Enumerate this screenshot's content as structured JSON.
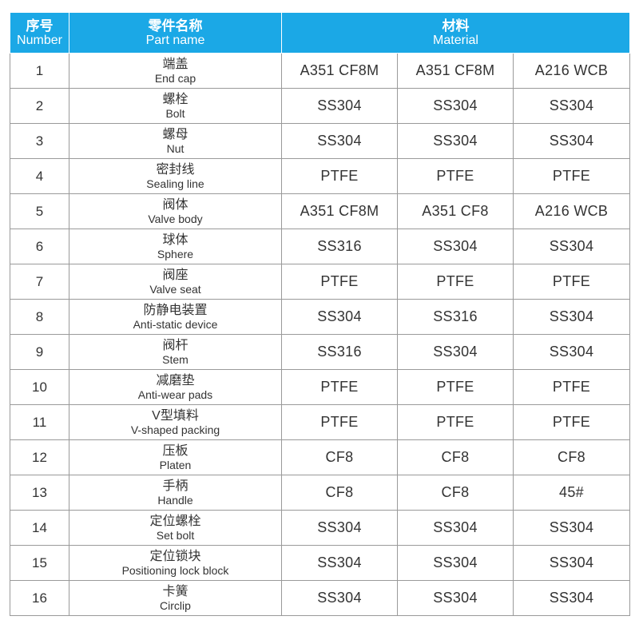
{
  "header": {
    "number_zh": "序号",
    "number_en": "Number",
    "part_name_zh": "零件名称",
    "part_name_en": "Part name",
    "material_zh": "材料",
    "material_en": "Material"
  },
  "rows": [
    {
      "no": "1",
      "zh": "端盖",
      "en": "End cap",
      "m1": "A351 CF8M",
      "m2": "A351 CF8M",
      "m3": "A216 WCB"
    },
    {
      "no": "2",
      "zh": "螺栓",
      "en": "Bolt",
      "m1": "SS304",
      "m2": "SS304",
      "m3": "SS304"
    },
    {
      "no": "3",
      "zh": "螺母",
      "en": "Nut",
      "m1": "SS304",
      "m2": "SS304",
      "m3": "SS304"
    },
    {
      "no": "4",
      "zh": "密封线",
      "en": "Sealing line",
      "m1": "PTFE",
      "m2": "PTFE",
      "m3": "PTFE"
    },
    {
      "no": "5",
      "zh": "阀体",
      "en": "Valve body",
      "m1": "A351 CF8M",
      "m2": "A351 CF8",
      "m3": "A216 WCB"
    },
    {
      "no": "6",
      "zh": "球体",
      "en": "Sphere",
      "m1": "SS316",
      "m2": "SS304",
      "m3": "SS304"
    },
    {
      "no": "7",
      "zh": "阀座",
      "en": "Valve seat",
      "m1": "PTFE",
      "m2": "PTFE",
      "m3": "PTFE"
    },
    {
      "no": "8",
      "zh": "防静电装置",
      "en": "Anti-static device",
      "m1": "SS304",
      "m2": "SS316",
      "m3": "SS304"
    },
    {
      "no": "9",
      "zh": "阀杆",
      "en": "Stem",
      "m1": "SS316",
      "m2": "SS304",
      "m3": "SS304"
    },
    {
      "no": "10",
      "zh": "减磨垫",
      "en": "Anti-wear pads",
      "m1": "PTFE",
      "m2": "PTFE",
      "m3": "PTFE"
    },
    {
      "no": "11",
      "zh": "V型填料",
      "en": "V-shaped packing",
      "m1": "PTFE",
      "m2": "PTFE",
      "m3": "PTFE"
    },
    {
      "no": "12",
      "zh": "压板",
      "en": "Platen",
      "m1": "CF8",
      "m2": "CF8",
      "m3": "CF8"
    },
    {
      "no": "13",
      "zh": "手柄",
      "en": "Handle",
      "m1": "CF8",
      "m2": "CF8",
      "m3": "45#"
    },
    {
      "no": "14",
      "zh": "定位螺栓",
      "en": "Set bolt",
      "m1": "SS304",
      "m2": "SS304",
      "m3": "SS304"
    },
    {
      "no": "15",
      "zh": "定位锁块",
      "en": "Positioning lock block",
      "m1": "SS304",
      "m2": "SS304",
      "m3": "SS304"
    },
    {
      "no": "16",
      "zh": "卡簧",
      "en": "Circlip",
      "m1": "SS304",
      "m2": "SS304",
      "m3": "SS304"
    }
  ],
  "colors": {
    "header_bg": "#1ba8e6",
    "header_text": "#ffffff",
    "grid": "#9a9a9a",
    "body_text": "#333333"
  }
}
